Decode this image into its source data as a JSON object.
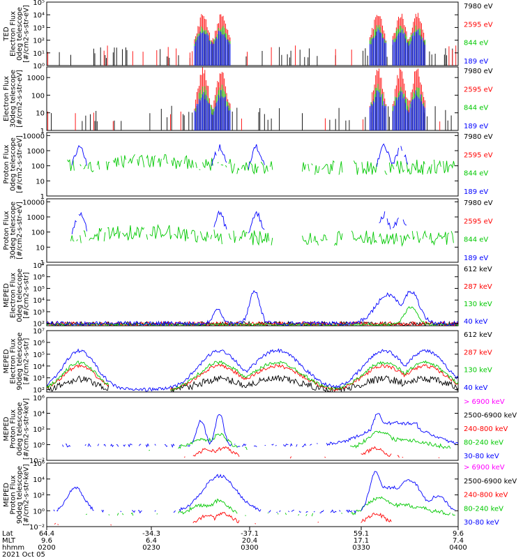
{
  "chart_data": [
    {
      "type": "line",
      "ylabel": [
        "TED",
        "Electron Flux",
        "0deg telescope",
        "[#/cm2-s-str-eV]"
      ],
      "y_ticks": [
        "10⁰",
        "10¹",
        "10²",
        "10³",
        "10⁴",
        "10⁵"
      ],
      "ylim_log10": [
        0,
        5
      ],
      "series": [
        {
          "name": "7980 eV",
          "color": "#000000",
          "values": []
        },
        {
          "name": "2595 eV",
          "color": "#ff0000",
          "values": []
        },
        {
          "name": "844 eV",
          "color": "#00c800",
          "values": []
        },
        {
          "name": "189 eV",
          "color": "#0000ff",
          "values": []
        }
      ]
    },
    {
      "type": "line",
      "ylabel": [
        "Electron Flux",
        "30deg telescope",
        "[#/cm2-s-str-eV]"
      ],
      "y_ticks": [
        "1",
        "10",
        "100",
        "1000"
      ],
      "ylim_log10": [
        0,
        3.6
      ],
      "series": [
        {
          "name": "7980 eV",
          "color": "#000000",
          "values": []
        },
        {
          "name": "2595 eV",
          "color": "#ff0000",
          "values": []
        },
        {
          "name": "844 eV",
          "color": "#00c800",
          "values": []
        },
        {
          "name": "189 eV",
          "color": "#0000ff",
          "values": []
        }
      ]
    },
    {
      "type": "line",
      "ylabel": [
        "Proton Flux",
        "0deg telescope",
        "[#/cm2-s-str-eV]"
      ],
      "y_ticks": [
        "1",
        "10",
        "100",
        "1000",
        "10000"
      ],
      "ylim_log10": [
        0,
        4.2
      ],
      "series": [
        {
          "name": "7980 eV",
          "color": "#000000",
          "values": []
        },
        {
          "name": "2595 eV",
          "color": "#ff0000",
          "values": []
        },
        {
          "name": "844 eV",
          "color": "#00c800",
          "values": []
        },
        {
          "name": "189 eV",
          "color": "#0000ff",
          "values": []
        }
      ]
    },
    {
      "type": "line",
      "ylabel": [
        "Proton Flux",
        "30deg telescope",
        "[#/cm2-s-str-eV]"
      ],
      "y_ticks": [
        "1",
        "10",
        "100",
        "1000",
        "10000"
      ],
      "ylim_log10": [
        0,
        4.2
      ],
      "series": [
        {
          "name": "7980 eV",
          "color": "#000000",
          "values": []
        },
        {
          "name": "2595 eV",
          "color": "#ff0000",
          "values": []
        },
        {
          "name": "844 eV",
          "color": "#00c800",
          "values": []
        },
        {
          "name": "189 eV",
          "color": "#0000ff",
          "values": []
        }
      ]
    },
    {
      "type": "line",
      "ylabel": [
        "MEPED",
        "Electron Flux",
        "0deg telescope",
        "[#/cm2-s-str]"
      ],
      "y_ticks": [
        "10²",
        "10³",
        "10⁴",
        "10⁵",
        "10⁶",
        "10⁷"
      ],
      "ylim_log10": [
        1.8,
        7
      ],
      "series": [
        {
          "name": "612 keV",
          "color": "#000000",
          "values": []
        },
        {
          "name": "287 keV",
          "color": "#ff0000",
          "values": []
        },
        {
          "name": "130 keV",
          "color": "#00c800",
          "values": []
        },
        {
          "name": "40 keV",
          "color": "#0000ff",
          "values": []
        }
      ]
    },
    {
      "type": "line",
      "ylabel": [
        "MEPED",
        "Electron Flux",
        "90deg telescope",
        "[#/cm2-s-str]"
      ],
      "y_ticks": [
        "10²",
        "10³",
        "10⁴",
        "10⁵",
        "10⁶",
        "10⁷"
      ],
      "ylim_log10": [
        1.8,
        7
      ],
      "series": [
        {
          "name": "612 keV",
          "color": "#000000",
          "values": []
        },
        {
          "name": "287 keV",
          "color": "#ff0000",
          "values": []
        },
        {
          "name": "130 keV",
          "color": "#00c800",
          "values": []
        },
        {
          "name": "40 keV",
          "color": "#0000ff",
          "values": []
        }
      ]
    },
    {
      "type": "line",
      "ylabel": [
        "MEPED",
        "Proton Flux",
        "0deg telescope",
        "[#/cm2-s-str-keV]"
      ],
      "y_ticks": [
        "10⁻²",
        "10⁰",
        "10²",
        "10⁴",
        "10⁶"
      ],
      "ylim_log10": [
        -2,
        6
      ],
      "series": [
        {
          "name": "> 6900 keV",
          "color": "#ff00ff",
          "values": []
        },
        {
          "name": "2500-6900 keV",
          "color": "#000000",
          "values": []
        },
        {
          "name": "240-800 keV",
          "color": "#ff0000",
          "values": []
        },
        {
          "name": "80-240 keV",
          "color": "#00c800",
          "values": []
        },
        {
          "name": "30-80 keV",
          "color": "#0000ff",
          "values": []
        }
      ]
    },
    {
      "type": "line",
      "ylabel": [
        "MEPED",
        "Proton Flux",
        "90deg telescope",
        "[#/cm2-s-str-keV]"
      ],
      "y_ticks": [
        "10⁻²",
        "10⁰",
        "10²",
        "10⁴",
        "10⁶"
      ],
      "ylim_log10": [
        -2,
        6
      ],
      "series": [
        {
          "name": "> 6900 keV",
          "color": "#ff00ff",
          "values": []
        },
        {
          "name": "2500-6900 keV",
          "color": "#000000",
          "values": []
        },
        {
          "name": "240-800 keV",
          "color": "#ff0000",
          "values": []
        },
        {
          "name": "80-240 keV",
          "color": "#00c800",
          "values": []
        },
        {
          "name": "30-80 keV",
          "color": "#0000ff",
          "values": []
        }
      ]
    }
  ],
  "x_axis": {
    "row_labels": [
      "Lat",
      "MLT",
      "hhmm"
    ],
    "columns": [
      {
        "lat": "64.4",
        "mlt": "9.6",
        "hhmm": "0200"
      },
      {
        "lat": "-34.3",
        "mlt": "6.4",
        "hhmm": "0230"
      },
      {
        "lat": "-37.1",
        "mlt": "20.4",
        "hhmm": "0300"
      },
      {
        "lat": "59.1",
        "mlt": "17.1",
        "hhmm": "0330"
      },
      {
        "lat": "9.6",
        "mlt": "7.4",
        "hhmm": "0400"
      }
    ],
    "date": "2021 Oct 05"
  }
}
